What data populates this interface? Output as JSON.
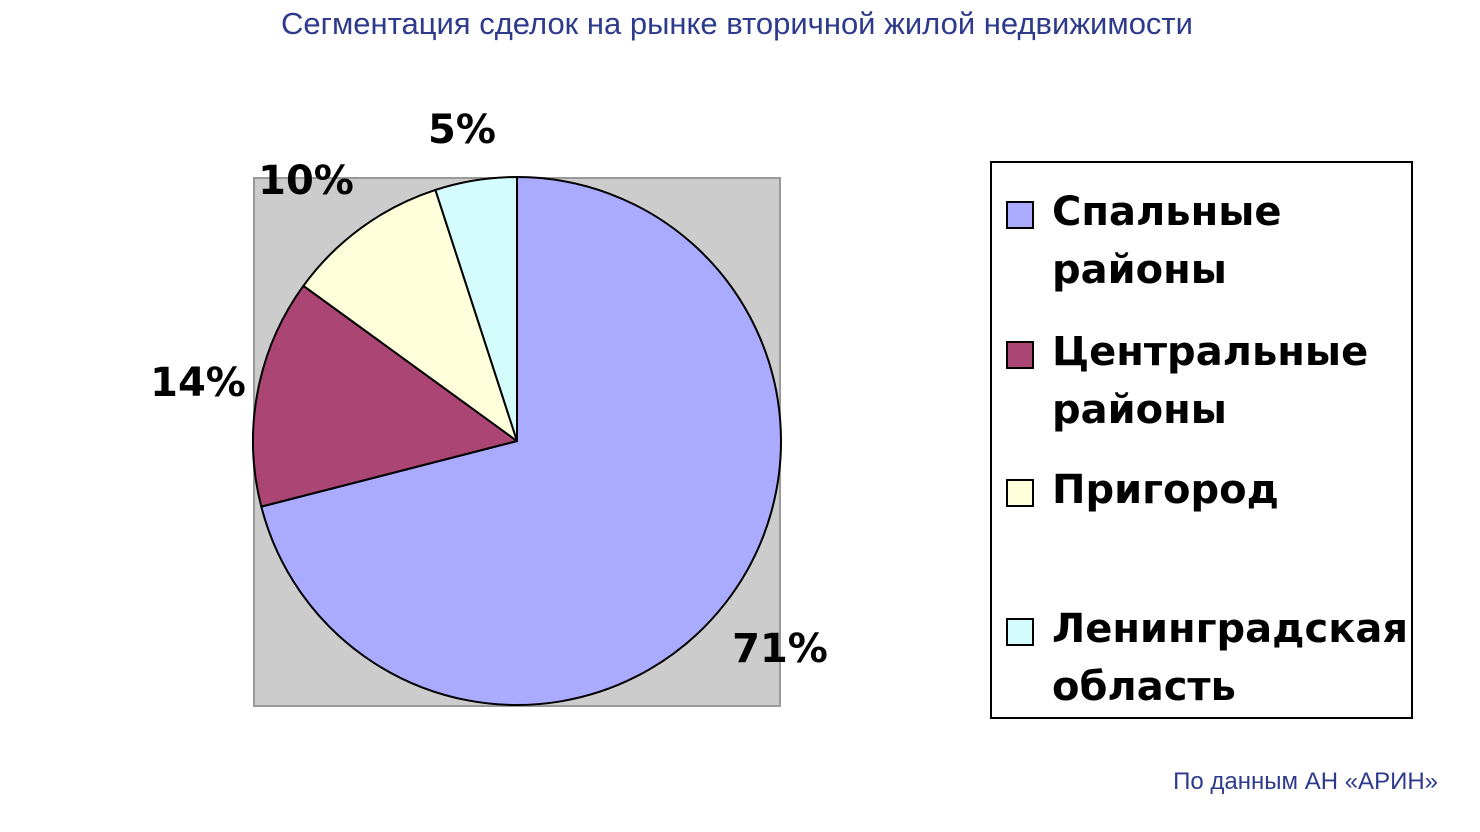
{
  "title": "Сегментация сделок на рынке вторичной жилой недвижимости",
  "source": "По данным АН «АРИН»",
  "chart_data": {
    "type": "pie",
    "title": "Сегментация сделок на рынке вторичной жилой недвижимости",
    "legend_position": "right",
    "slices": [
      {
        "name": "Спальные районы",
        "value": 71,
        "label": "71%",
        "color": "#aaaaff"
      },
      {
        "name": "Центральные районы",
        "value": 14,
        "label": "14%",
        "color": "#ab4574"
      },
      {
        "name": "Пригород",
        "value": 10,
        "label": "10%",
        "color": "#ffffdb"
      },
      {
        "name": "Ленинградская область",
        "value": 5,
        "label": "5%",
        "color": "#d4fcfd"
      }
    ],
    "plot_background": "#cccccc"
  }
}
